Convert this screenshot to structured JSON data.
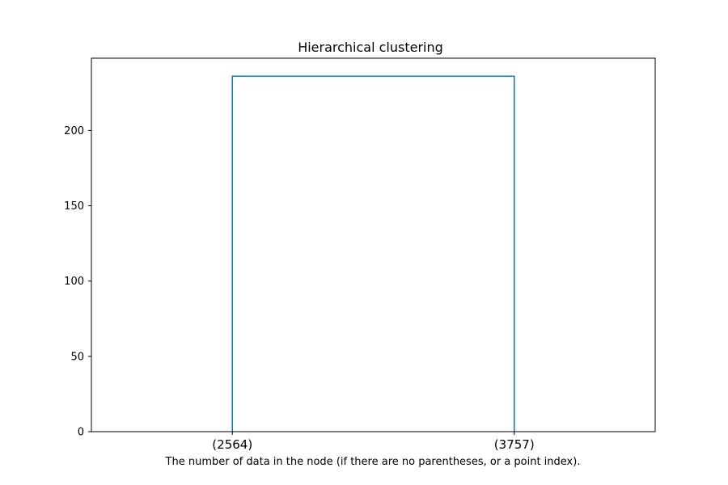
{
  "chart_data": {
    "type": "dendrogram",
    "title": "Hierarchical clustering",
    "xlabel": "The number of data in the node (if there are no parentheses, or a point index).",
    "ylabel": "",
    "ylim": [
      0,
      248
    ],
    "yticks": [
      0,
      50,
      100,
      150,
      200
    ],
    "leaves": [
      "(2564)",
      "(3757)"
    ],
    "merges": [
      {
        "left": 0,
        "right": 1,
        "height": 236
      }
    ],
    "grid": false,
    "line_color": "#1f77b4"
  }
}
